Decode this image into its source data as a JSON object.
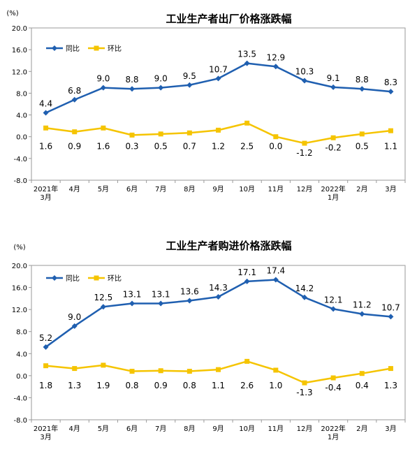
{
  "chart_data": [
    {
      "type": "line",
      "title": "工业生产者出厂价格涨跌幅",
      "unit": "(%)",
      "categories": [
        "2021年3月",
        "4月",
        "5月",
        "6月",
        "7月",
        "8月",
        "9月",
        "10月",
        "11月",
        "12月",
        "2022年1月",
        "2月",
        "3月"
      ],
      "category_lines": [
        [
          "2021年",
          "3月"
        ],
        [
          "4月"
        ],
        [
          "5月"
        ],
        [
          "6月"
        ],
        [
          "7月"
        ],
        [
          "8月"
        ],
        [
          "9月"
        ],
        [
          "10月"
        ],
        [
          "11月"
        ],
        [
          "12月"
        ],
        [
          "2022年",
          "1月"
        ],
        [
          "2月"
        ],
        [
          "3月"
        ]
      ],
      "ylim": [
        -8.0,
        20.0
      ],
      "yticks": [
        "20.0",
        "16.0",
        "12.0",
        "8.0",
        "4.0",
        "0.0",
        "-4.0",
        "-8.0"
      ],
      "ytick_values": [
        20,
        16,
        12,
        8,
        4,
        0,
        -4,
        -8
      ],
      "legend_position": "top-left",
      "grid": false,
      "series": [
        {
          "name": "同比",
          "color": "#1f5fb0",
          "marker": "diamond",
          "values": [
            4.4,
            6.8,
            9.0,
            8.8,
            9.0,
            9.5,
            10.7,
            13.5,
            12.9,
            10.3,
            9.1,
            8.8,
            8.3
          ],
          "labels": [
            "4.4",
            "6.8",
            "9.0",
            "8.8",
            "9.0",
            "9.5",
            "10.7",
            "13.5",
            "12.9",
            "10.3",
            "9.1",
            "8.8",
            "8.3"
          ]
        },
        {
          "name": "环比",
          "color": "#f5c400",
          "marker": "square",
          "values": [
            1.6,
            0.9,
            1.6,
            0.3,
            0.5,
            0.7,
            1.2,
            2.5,
            0.0,
            -1.2,
            -0.2,
            0.5,
            1.1
          ],
          "labels": [
            "1.6",
            "0.9",
            "1.6",
            "0.3",
            "0.5",
            "0.7",
            "1.2",
            "2.5",
            "0.0",
            "-1.2",
            "-0.2",
            "0.5",
            "1.1"
          ]
        }
      ]
    },
    {
      "type": "line",
      "title": "工业生产者购进价格涨跌幅",
      "unit": "(%)",
      "categories": [
        "2021年3月",
        "4月",
        "5月",
        "6月",
        "7月",
        "8月",
        "9月",
        "10月",
        "11月",
        "12月",
        "2022年1月",
        "2月",
        "3月"
      ],
      "category_lines": [
        [
          "2021年",
          "3月"
        ],
        [
          "4月"
        ],
        [
          "5月"
        ],
        [
          "6月"
        ],
        [
          "7月"
        ],
        [
          "8月"
        ],
        [
          "9月"
        ],
        [
          "10月"
        ],
        [
          "11月"
        ],
        [
          "12月"
        ],
        [
          "2022年",
          "1月"
        ],
        [
          "2月"
        ],
        [
          "3月"
        ]
      ],
      "ylim": [
        -8.0,
        20.0
      ],
      "yticks": [
        "20.0",
        "16.0",
        "12.0",
        "8.0",
        "4.0",
        "0.0",
        "-4.0",
        "-8.0"
      ],
      "ytick_values": [
        20,
        16,
        12,
        8,
        4,
        0,
        -4,
        -8
      ],
      "legend_position": "top-left",
      "grid": false,
      "series": [
        {
          "name": "同比",
          "color": "#1f5fb0",
          "marker": "diamond",
          "values": [
            5.2,
            9.0,
            12.5,
            13.1,
            13.1,
            13.6,
            14.3,
            17.1,
            17.4,
            14.2,
            12.1,
            11.2,
            10.7
          ],
          "labels": [
            "5.2",
            "9.0",
            "12.5",
            "13.1",
            "13.1",
            "13.6",
            "14.3",
            "17.1",
            "17.4",
            "14.2",
            "12.1",
            "11.2",
            "10.7"
          ]
        },
        {
          "name": "环比",
          "color": "#f5c400",
          "marker": "square",
          "values": [
            1.8,
            1.3,
            1.9,
            0.8,
            0.9,
            0.8,
            1.1,
            2.6,
            1.0,
            -1.3,
            -0.4,
            0.4,
            1.3
          ],
          "labels": [
            "1.8",
            "1.3",
            "1.9",
            "0.8",
            "0.9",
            "0.8",
            "1.1",
            "2.6",
            "1.0",
            "-1.3",
            "-0.4",
            "0.4",
            "1.3"
          ]
        }
      ]
    }
  ]
}
